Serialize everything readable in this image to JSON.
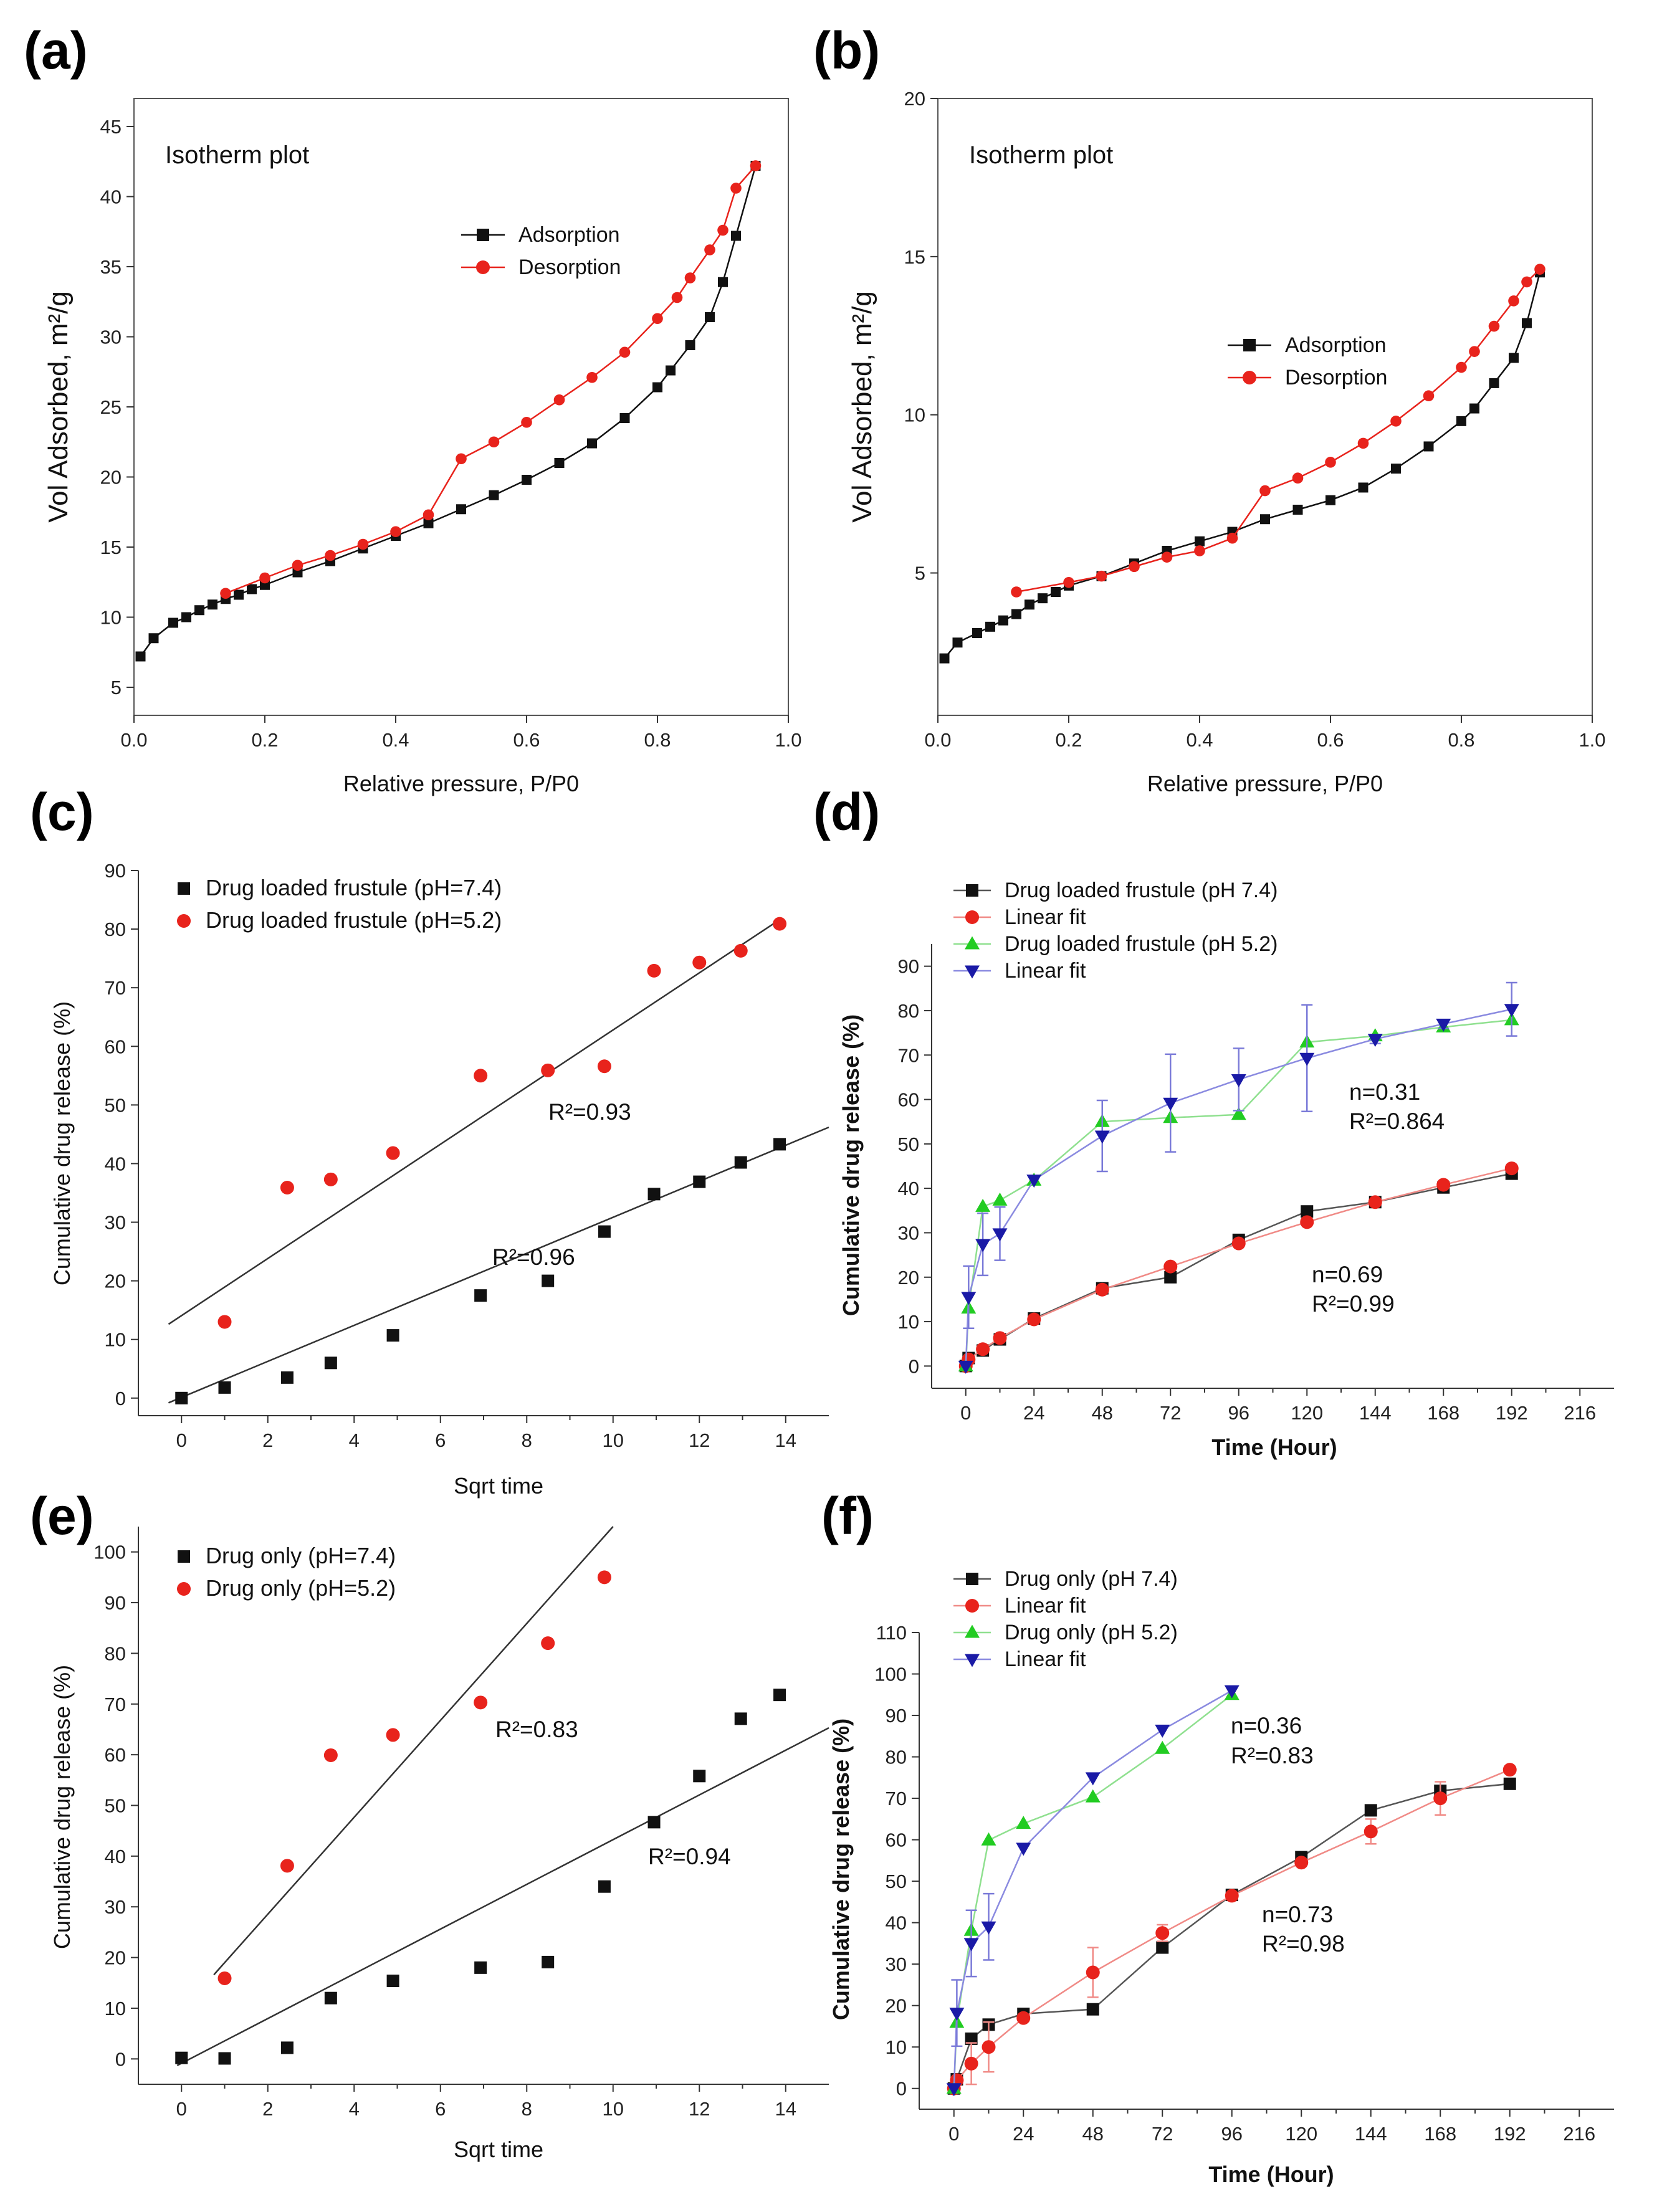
{
  "figure": {
    "panel_labels": [
      "(a)",
      "(b)",
      "(c)",
      "(d)",
      "(e)",
      "(f)"
    ]
  },
  "chart_data": [
    {
      "id": "a",
      "type": "line",
      "title": "Isotherm plot",
      "xlabel": "Relative pressure, P/P0",
      "ylabel": "Vol Adsorbed, m²/g",
      "xlim": [
        0,
        1.0
      ],
      "ylim": [
        3,
        47
      ],
      "xticks": [
        0.0,
        0.2,
        0.4,
        0.6,
        0.8,
        1.0
      ],
      "xtick_labels": [
        "0.0",
        "0.2",
        "0.4",
        "0.6",
        "0.8",
        "1.0"
      ],
      "yticks": [
        5,
        10,
        15,
        20,
        25,
        30,
        35,
        40,
        45
      ],
      "ytick_labels": [
        "5",
        "10",
        "15",
        "20",
        "25",
        "30",
        "35",
        "40",
        "45"
      ],
      "series": [
        {
          "name": "Adsorption",
          "color": "#111111",
          "marker": "square",
          "x": [
            0.01,
            0.03,
            0.06,
            0.08,
            0.1,
            0.12,
            0.14,
            0.16,
            0.18,
            0.2,
            0.25,
            0.3,
            0.35,
            0.4,
            0.45,
            0.5,
            0.55,
            0.6,
            0.65,
            0.7,
            0.75,
            0.8,
            0.82,
            0.85,
            0.88,
            0.9,
            0.92,
            0.95
          ],
          "y": [
            7.2,
            8.5,
            9.6,
            10.0,
            10.5,
            10.9,
            11.3,
            11.6,
            12.0,
            12.3,
            13.2,
            14.0,
            14.9,
            15.8,
            16.7,
            17.7,
            18.7,
            19.8,
            21.0,
            22.4,
            24.2,
            26.4,
            27.6,
            29.4,
            31.4,
            33.9,
            37.2,
            42.2
          ]
        },
        {
          "name": "Desorption",
          "color": "#e8231c",
          "marker": "circle",
          "x": [
            0.14,
            0.2,
            0.25,
            0.3,
            0.35,
            0.4,
            0.45,
            0.5,
            0.55,
            0.6,
            0.65,
            0.7,
            0.75,
            0.8,
            0.83,
            0.85,
            0.88,
            0.9,
            0.92,
            0.95
          ],
          "y": [
            11.7,
            12.8,
            13.7,
            14.4,
            15.2,
            16.1,
            17.3,
            21.3,
            22.5,
            23.9,
            25.5,
            27.1,
            28.9,
            31.3,
            32.8,
            34.2,
            36.2,
            37.6,
            40.6,
            42.2
          ]
        }
      ]
    },
    {
      "id": "b",
      "type": "line",
      "title": "Isotherm plot",
      "xlabel": "Relative pressure, P/P0",
      "ylabel": "Vol Adsorbed, m²/g",
      "xlim": [
        0,
        1.0
      ],
      "ylim": [
        0.5,
        20
      ],
      "xticks": [
        0.0,
        0.2,
        0.4,
        0.6,
        0.8,
        1.0
      ],
      "xtick_labels": [
        "0.0",
        "0.2",
        "0.4",
        "0.6",
        "0.8",
        "1.0"
      ],
      "yticks": [
        5,
        10,
        15,
        20
      ],
      "ytick_labels": [
        "5",
        "10",
        "15",
        "20"
      ],
      "series": [
        {
          "name": "Adsorption",
          "color": "#111111",
          "marker": "square",
          "x": [
            0.01,
            0.03,
            0.06,
            0.08,
            0.1,
            0.12,
            0.14,
            0.16,
            0.18,
            0.2,
            0.25,
            0.3,
            0.35,
            0.4,
            0.45,
            0.5,
            0.55,
            0.6,
            0.65,
            0.7,
            0.75,
            0.8,
            0.82,
            0.85,
            0.88,
            0.9,
            0.92
          ],
          "y": [
            2.3,
            2.8,
            3.1,
            3.3,
            3.5,
            3.7,
            4.0,
            4.2,
            4.4,
            4.6,
            4.9,
            5.3,
            5.7,
            6.0,
            6.3,
            6.7,
            7.0,
            7.3,
            7.7,
            8.3,
            9.0,
            9.8,
            10.2,
            11.0,
            11.8,
            12.9,
            14.5
          ]
        },
        {
          "name": "Desorption",
          "color": "#e8231c",
          "marker": "circle",
          "x": [
            0.12,
            0.2,
            0.25,
            0.3,
            0.35,
            0.4,
            0.45,
            0.5,
            0.55,
            0.6,
            0.65,
            0.7,
            0.75,
            0.8,
            0.82,
            0.85,
            0.88,
            0.9,
            0.92
          ],
          "y": [
            4.4,
            4.7,
            4.9,
            5.2,
            5.5,
            5.7,
            6.1,
            7.6,
            8.0,
            8.5,
            9.1,
            9.8,
            10.6,
            11.5,
            12.0,
            12.8,
            13.6,
            14.2,
            14.6
          ]
        }
      ]
    },
    {
      "id": "c",
      "type": "scatter",
      "xlabel": "Sqrt time",
      "ylabel": "Cumulative drug release (%)",
      "xlim": [
        -1,
        15
      ],
      "ylim": [
        -3,
        90
      ],
      "xticks": [
        0,
        2,
        4,
        6,
        8,
        10,
        12,
        14
      ],
      "xtick_labels": [
        "0",
        "2",
        "4",
        "6",
        "8",
        "10",
        "12",
        "14"
      ],
      "yticks": [
        0,
        10,
        20,
        30,
        40,
        50,
        60,
        70,
        80,
        90
      ],
      "ytick_labels": [
        "0",
        "10",
        "20",
        "30",
        "40",
        "50",
        "60",
        "70",
        "80",
        "90"
      ],
      "series": [
        {
          "name": "Drug loaded frustule (pH=7.4)",
          "color": "#111111",
          "marker": "square",
          "x": [
            0,
            1,
            2.45,
            3.46,
            4.9,
            6.93,
            8.49,
            9.8,
            10.95,
            12,
            12.96,
            13.86
          ],
          "y": [
            0,
            1.8,
            3.5,
            6,
            10.7,
            17.5,
            20,
            28.4,
            34.8,
            36.9,
            40.2,
            43.3
          ],
          "fit": {
            "x0": -0.3,
            "y0": -0.8,
            "x1": 15,
            "y1": 46.2
          }
        },
        {
          "name": "Drug loaded frustule (pH=5.2)",
          "color": "#e8231c",
          "marker": "circle",
          "x": [
            1,
            2.45,
            3.46,
            4.9,
            6.93,
            8.49,
            9.8,
            10.95,
            12,
            12.96,
            13.86
          ],
          "y": [
            13,
            35.9,
            37.3,
            41.8,
            55,
            55.9,
            56.6,
            72.9,
            74.3,
            76.3,
            80.9
          ],
          "fit": {
            "x0": -0.3,
            "y0": 12.6,
            "x1": 13.9,
            "y1": 81.8
          }
        }
      ],
      "annotations": [
        "R²=0.93",
        "R²=0.96"
      ]
    },
    {
      "id": "d",
      "type": "line",
      "xlabel": "Time (Hour)",
      "ylabel": "Cumulative drug release (%)",
      "xlim": [
        -12,
        228
      ],
      "ylim": [
        -5,
        95
      ],
      "xticks": [
        0,
        24,
        48,
        72,
        96,
        120,
        144,
        168,
        192,
        216
      ],
      "xtick_labels": [
        "0",
        "24",
        "48",
        "72",
        "96",
        "120",
        "144",
        "168",
        "192",
        "216"
      ],
      "yticks": [
        0,
        10,
        20,
        30,
        40,
        50,
        60,
        70,
        80,
        90
      ],
      "ytick_labels": [
        "0",
        "10",
        "20",
        "30",
        "40",
        "50",
        "60",
        "70",
        "80",
        "90"
      ],
      "series": [
        {
          "name": "Drug loaded frustule (pH 7.4)",
          "color": "#111111",
          "marker": "square",
          "x": [
            0,
            1,
            6,
            12,
            24,
            48,
            72,
            96,
            120,
            144,
            168,
            192
          ],
          "y": [
            0,
            1.8,
            3.5,
            6,
            10.7,
            17.5,
            20,
            28.4,
            34.8,
            36.9,
            40.2,
            43.3
          ]
        },
        {
          "name": "Linear fit",
          "color": "#e8231c",
          "marker": "circle",
          "x": [
            0,
            1,
            6,
            12,
            24,
            48,
            72,
            96,
            120,
            144,
            168,
            192
          ],
          "y": [
            0,
            1.5,
            3.8,
            6.3,
            10.5,
            17.2,
            22.4,
            27.6,
            32.4,
            36.9,
            40.8,
            44.5
          ]
        },
        {
          "name": "Drug loaded frustule (pH 5.2)",
          "color": "#22cc22",
          "marker": "triangle-up",
          "x": [
            0,
            1,
            6,
            12,
            24,
            48,
            72,
            96,
            120,
            144,
            168,
            192
          ],
          "y": [
            0,
            13,
            35.9,
            37.3,
            41.8,
            55,
            55.9,
            56.6,
            72.9,
            74.3,
            76.3,
            77.9
          ]
        },
        {
          "name": "Linear fit",
          "color": "#1a1aa6",
          "marker": "triangle-down",
          "x": [
            0,
            1,
            6,
            12,
            24,
            48,
            72,
            96,
            120,
            144,
            168,
            192
          ],
          "y": [
            0,
            15.5,
            27.4,
            29.8,
            41.9,
            51.8,
            59.2,
            64.5,
            69.3,
            73.6,
            77,
            80.3
          ],
          "err": [
            0,
            7,
            7,
            6,
            0,
            8,
            11,
            7,
            12,
            1,
            1,
            6
          ]
        }
      ],
      "annotations": [
        "n=0.31",
        "R²=0.864",
        "n=0.69",
        "R²=0.99"
      ]
    },
    {
      "id": "e",
      "type": "scatter",
      "xlabel": "Sqrt time",
      "ylabel": "Cumulative drug release (%)",
      "xlim": [
        -1,
        15
      ],
      "ylim": [
        -5,
        105
      ],
      "xticks": [
        0,
        2,
        4,
        6,
        8,
        10,
        12,
        14
      ],
      "xtick_labels": [
        "0",
        "2",
        "4",
        "6",
        "8",
        "10",
        "12",
        "14"
      ],
      "yticks": [
        0,
        10,
        20,
        30,
        40,
        50,
        60,
        70,
        80,
        90,
        100
      ],
      "ytick_labels": [
        "0",
        "10",
        "20",
        "30",
        "40",
        "50",
        "60",
        "70",
        "80",
        "90",
        "100"
      ],
      "series": [
        {
          "name": "Drug only (pH=7.4)",
          "color": "#111111",
          "marker": "square",
          "x": [
            0,
            1,
            2.45,
            3.46,
            4.9,
            6.93,
            8.49,
            9.8,
            10.95,
            12,
            12.96,
            13.86
          ],
          "y": [
            0.2,
            0.1,
            2.2,
            12,
            15.4,
            18,
            19.1,
            34,
            46.7,
            55.8,
            67.1,
            71.8
          ],
          "fit": {
            "x0": -0.1,
            "y0": -1.3,
            "x1": 15,
            "y1": 65.3
          }
        },
        {
          "name": "Drug only (pH=5.2)",
          "color": "#e8231c",
          "marker": "circle",
          "x": [
            1,
            2.45,
            3.46,
            4.9,
            6.93,
            8.49,
            9.8
          ],
          "y": [
            15.9,
            38.1,
            59.9,
            63.9,
            70.3,
            82,
            95
          ],
          "fit": {
            "x0": 0.75,
            "y0": 16.6,
            "x1": 10,
            "y1": 105
          }
        }
      ],
      "annotations": [
        "R²=0.83",
        "R²=0.94"
      ]
    },
    {
      "id": "f",
      "type": "line",
      "xlabel": "Time (Hour)",
      "ylabel": "Cumulative drug release (%)",
      "xlim": [
        -12,
        228
      ],
      "ylim": [
        -5,
        110
      ],
      "xticks": [
        0,
        24,
        48,
        72,
        96,
        120,
        144,
        168,
        192,
        216
      ],
      "xtick_labels": [
        "0",
        "24",
        "48",
        "72",
        "96",
        "120",
        "144",
        "168",
        "192",
        "216"
      ],
      "yticks": [
        0,
        10,
        20,
        30,
        40,
        50,
        60,
        70,
        80,
        90,
        100,
        110
      ],
      "ytick_labels": [
        "0",
        "10",
        "20",
        "30",
        "40",
        "50",
        "60",
        "70",
        "80",
        "90",
        "100",
        "110"
      ],
      "series": [
        {
          "name": "Drug only (pH 7.4)",
          "color": "#111111",
          "marker": "square",
          "x": [
            0,
            1,
            6,
            12,
            24,
            48,
            72,
            96,
            120,
            144,
            168,
            192
          ],
          "y": [
            0,
            2.2,
            12,
            15.4,
            18,
            19.1,
            34,
            46.7,
            55.8,
            67.1,
            71.8,
            73.5
          ]
        },
        {
          "name": "Linear fit",
          "color": "#e8231c",
          "marker": "circle",
          "x": [
            0,
            1,
            6,
            12,
            24,
            48,
            72,
            96,
            120,
            144,
            168,
            192
          ],
          "y": [
            0,
            2,
            6,
            10,
            17,
            28,
            37.5,
            46.5,
            54.5,
            62,
            70,
            76.9
          ],
          "err": [
            0,
            0,
            5,
            6,
            0,
            6,
            2,
            0,
            0,
            3,
            4,
            0
          ]
        },
        {
          "name": "Drug only (pH 5.2)",
          "color": "#22cc22",
          "marker": "triangle-up",
          "x": [
            0,
            1,
            6,
            12,
            24,
            48,
            72,
            96
          ],
          "y": [
            0,
            15.9,
            38.1,
            59.9,
            63.9,
            70.3,
            82,
            95
          ]
        },
        {
          "name": "Linear fit",
          "color": "#1a1aa6",
          "marker": "triangle-down",
          "x": [
            0,
            1,
            6,
            12,
            24,
            48,
            72,
            96
          ],
          "y": [
            0,
            18.2,
            35,
            39,
            58,
            75,
            86.5,
            96
          ],
          "err": [
            0,
            8,
            8,
            8,
            0,
            0,
            0,
            0
          ]
        }
      ],
      "annotations": [
        "n=0.36",
        "R²=0.83",
        "n=0.73",
        "R²=0.98"
      ]
    }
  ]
}
